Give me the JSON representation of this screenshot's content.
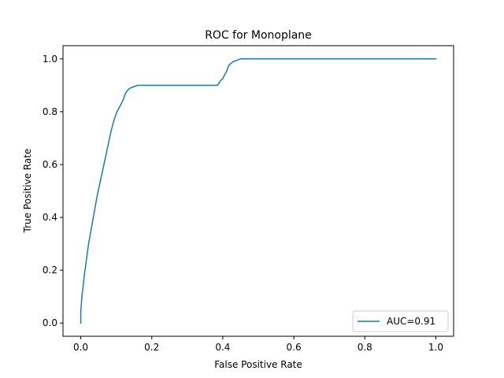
{
  "chart_data": {
    "type": "line",
    "title": "ROC for Monoplane",
    "xlabel": "False Positive Rate",
    "ylabel": "True Positive Rate",
    "xlim": [
      -0.05,
      1.05
    ],
    "ylim": [
      -0.05,
      1.05
    ],
    "x_ticks": [
      "0.0",
      "0.2",
      "0.4",
      "0.6",
      "0.8",
      "1.0"
    ],
    "y_ticks": [
      "0.0",
      "0.2",
      "0.4",
      "0.6",
      "0.8",
      "1.0"
    ],
    "grid": false,
    "legend_position": "lower-right",
    "colors": {
      "series": "#1f77b4",
      "axes": "#000000"
    },
    "series": [
      {
        "name": "AUC=0.91",
        "x": [
          0.0,
          0.0,
          0.002,
          0.004,
          0.006,
          0.01,
          0.014,
          0.018,
          0.022,
          0.03,
          0.038,
          0.046,
          0.054,
          0.062,
          0.07,
          0.078,
          0.086,
          0.094,
          0.102,
          0.11,
          0.118,
          0.126,
          0.134,
          0.14,
          0.15,
          0.16,
          0.2,
          0.3,
          0.385,
          0.39,
          0.395,
          0.4,
          0.405,
          0.41,
          0.415,
          0.42,
          0.425,
          0.43,
          0.44,
          0.45,
          0.455,
          0.5,
          0.6,
          0.7,
          0.8,
          0.9,
          1.0
        ],
        "y": [
          0.0,
          0.04,
          0.08,
          0.11,
          0.13,
          0.18,
          0.22,
          0.26,
          0.3,
          0.36,
          0.42,
          0.48,
          0.53,
          0.58,
          0.63,
          0.68,
          0.73,
          0.77,
          0.8,
          0.82,
          0.84,
          0.87,
          0.885,
          0.89,
          0.895,
          0.9,
          0.9,
          0.9,
          0.9,
          0.91,
          0.92,
          0.925,
          0.94,
          0.95,
          0.97,
          0.98,
          0.985,
          0.99,
          0.995,
          1.0,
          1.0,
          1.0,
          1.0,
          1.0,
          1.0,
          1.0,
          1.0
        ]
      }
    ]
  }
}
